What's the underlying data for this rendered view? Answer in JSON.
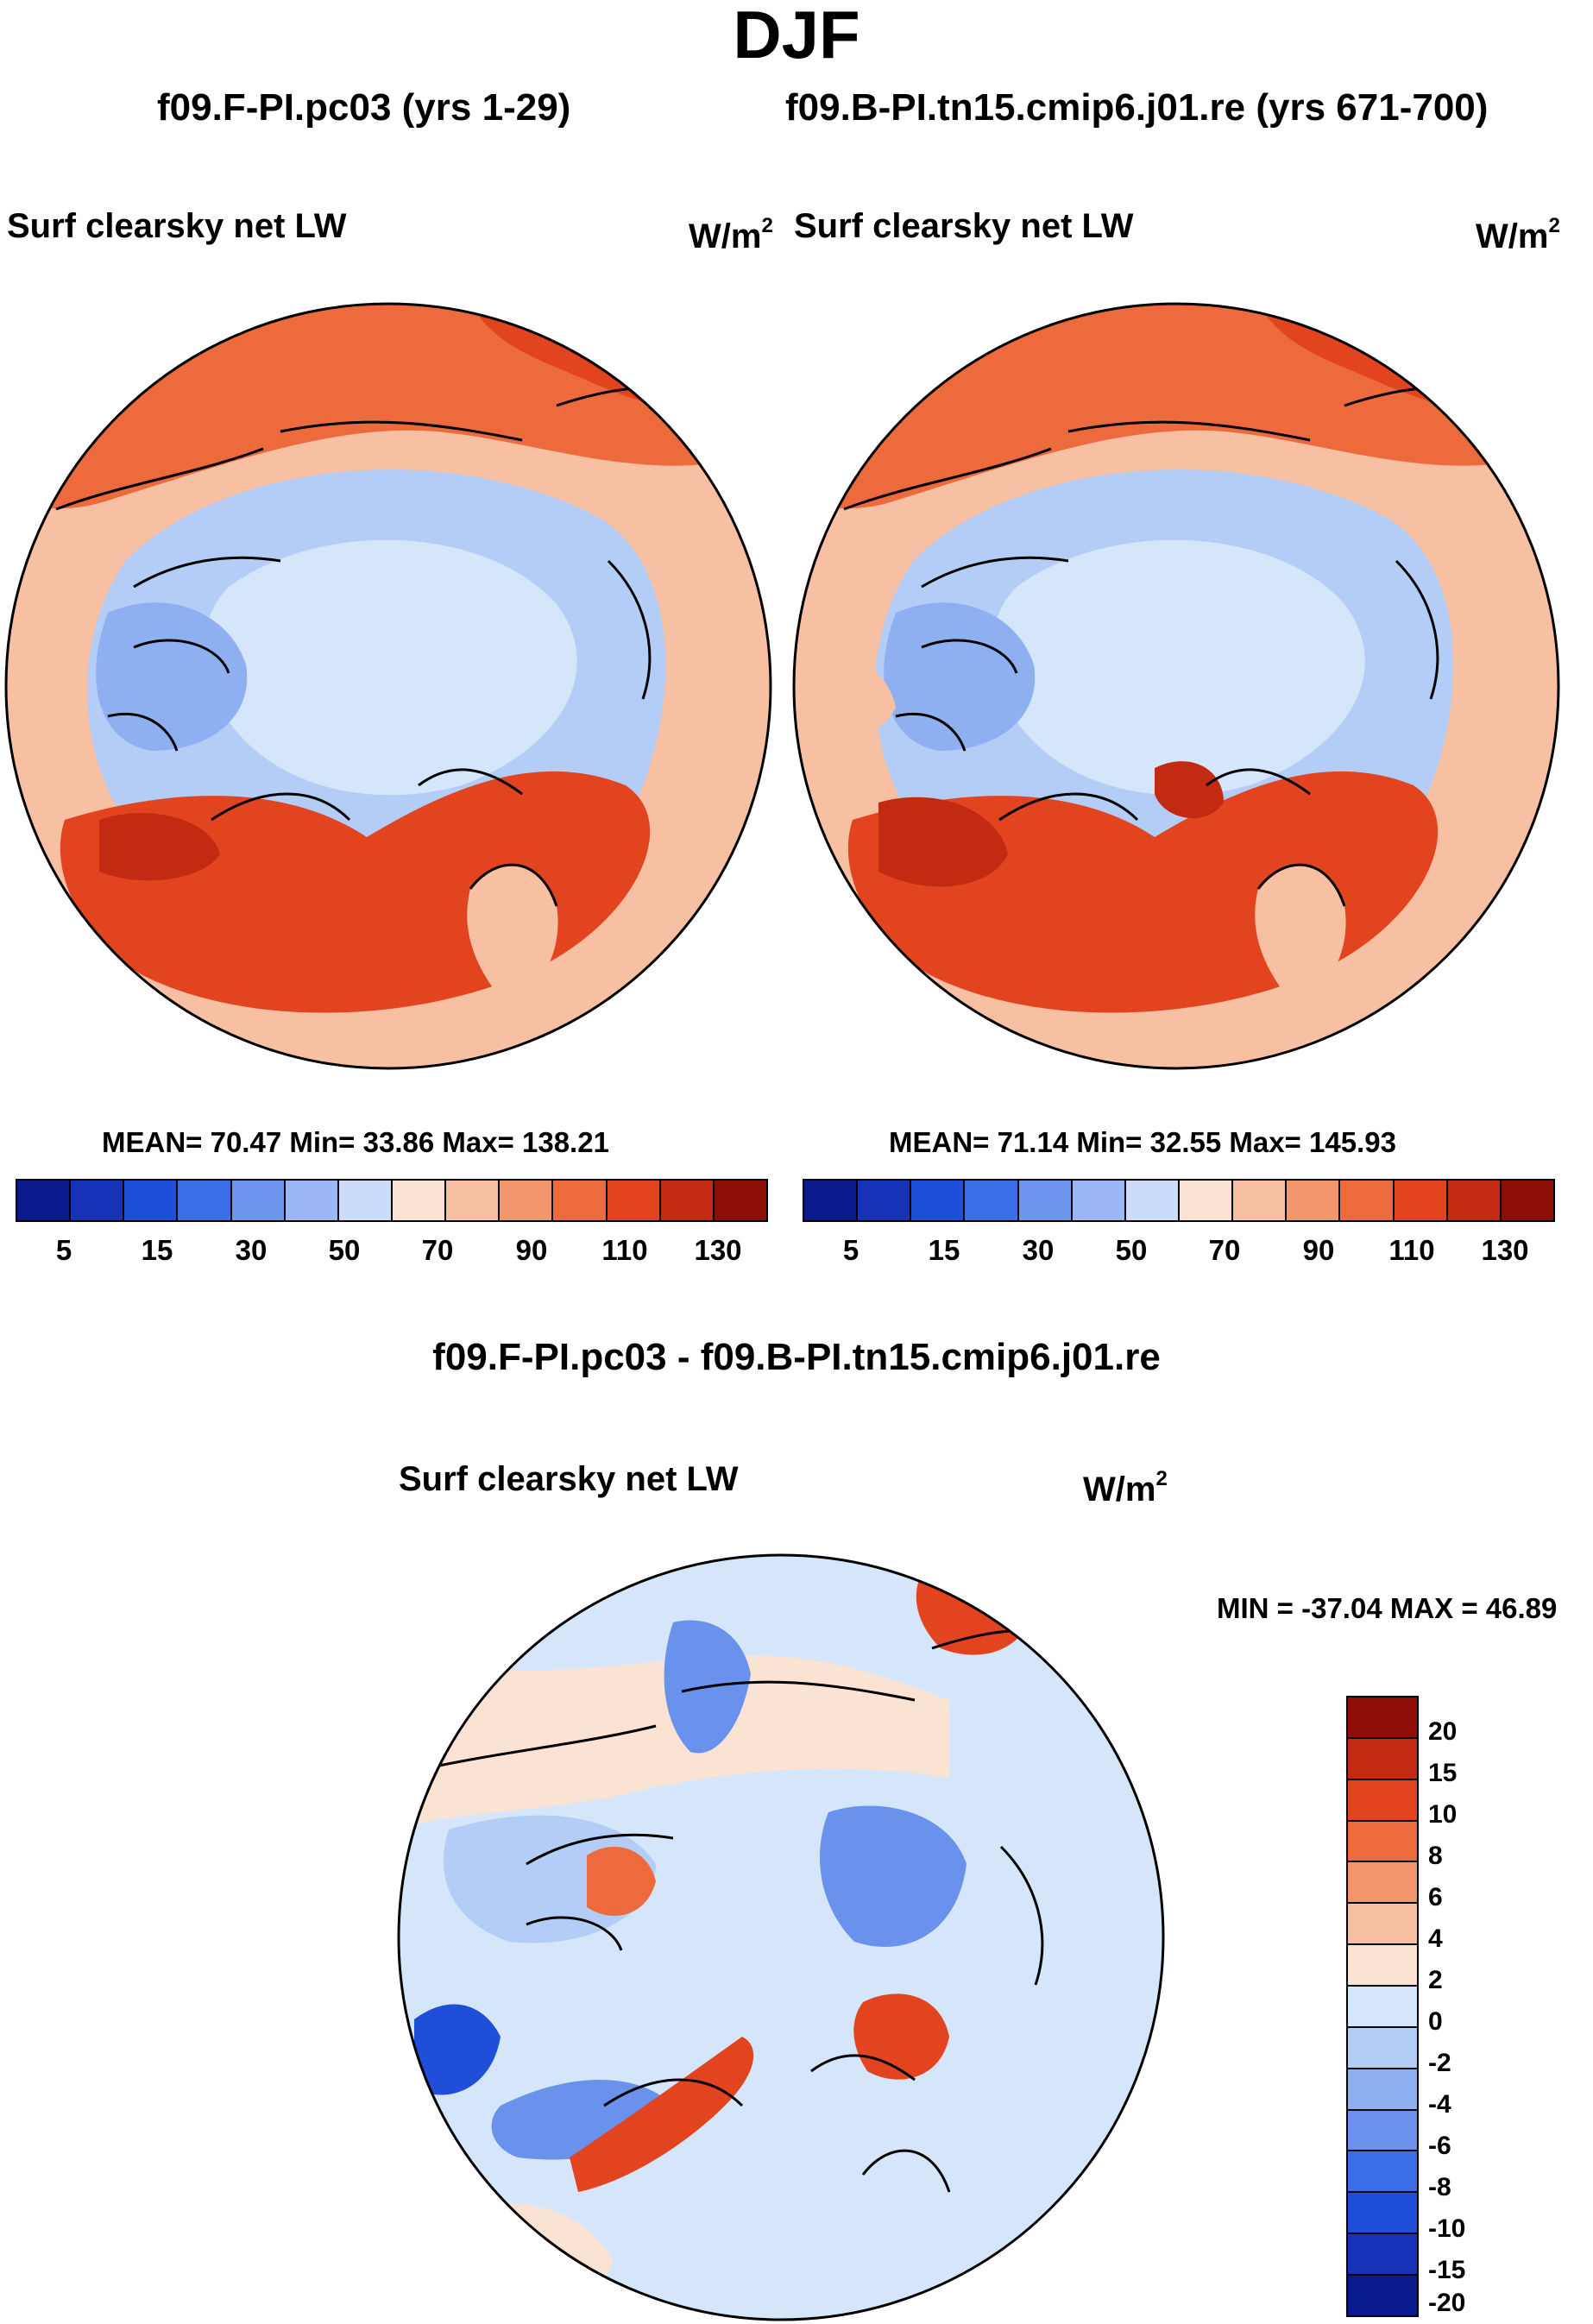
{
  "title": "DJF",
  "panels": [
    {
      "case_title": "f09.F-PI.pc03 (yrs 1-29)",
      "variable": "Surf clearsky net LW",
      "unit_base": "W/m",
      "unit_exp": "2",
      "stats": "MEAN=  70.47  Min=  33.86  Max= 138.21"
    },
    {
      "case_title": "f09.B-PI.tn15.cmip6.j01.re (yrs 671-700)",
      "variable": "Surf clearsky net LW",
      "unit_base": "W/m",
      "unit_exp": "2",
      "stats": "MEAN=  71.14  Min=  32.55  Max= 145.93"
    }
  ],
  "abs_colorbar": {
    "colors": [
      "#0a1a8c",
      "#1633b8",
      "#1f4fd9",
      "#3a6fe8",
      "#6e95ef",
      "#9cb8f4",
      "#cbdcf8",
      "#fbe3d3",
      "#f7c0a3",
      "#f2946c",
      "#ec6a3c",
      "#e2441f",
      "#c32a12",
      "#8e0e07"
    ],
    "tick_labels": [
      "5",
      "15",
      "30",
      "50",
      "70",
      "90",
      "110",
      "130"
    ]
  },
  "diff": {
    "title": "f09.F-PI.pc03 - f09.B-PI.tn15.cmip6.j01.re",
    "variable": "Surf clearsky net LW",
    "unit_base": "W/m",
    "unit_exp": "2",
    "minmax": "MIN = -37.04 MAX =  46.89",
    "colorbar": {
      "colors": [
        "#8e0e07",
        "#c32a12",
        "#e2441f",
        "#ec6a3c",
        "#f2946c",
        "#f7c0a3",
        "#fbe3d3",
        "#d6e6fa",
        "#b3cdf6",
        "#8eb0f1",
        "#6a92ec",
        "#3a6fe8",
        "#1f4fd9",
        "#1633b8",
        "#0a1a8c"
      ],
      "tick_labels": [
        "20",
        "15",
        "10",
        "8",
        "6",
        "4",
        "2",
        "0",
        "-2",
        "-4",
        "-6",
        "-8",
        "-10",
        "-15",
        "-20"
      ]
    }
  },
  "map_colors": {
    "warm_dark": "#c32a12",
    "warm": "#e2441f",
    "warm_mid": "#ec6a3c",
    "warm_light": "#f7c0a3",
    "neutral_warm": "#fbe3d3",
    "cool_pale": "#d6e6fa",
    "cool_light": "#b3cdf6",
    "cool": "#8eb0f1",
    "cool_mid": "#6a92ec",
    "cool_dark": "#1f4fd9",
    "coast": "#000000"
  }
}
